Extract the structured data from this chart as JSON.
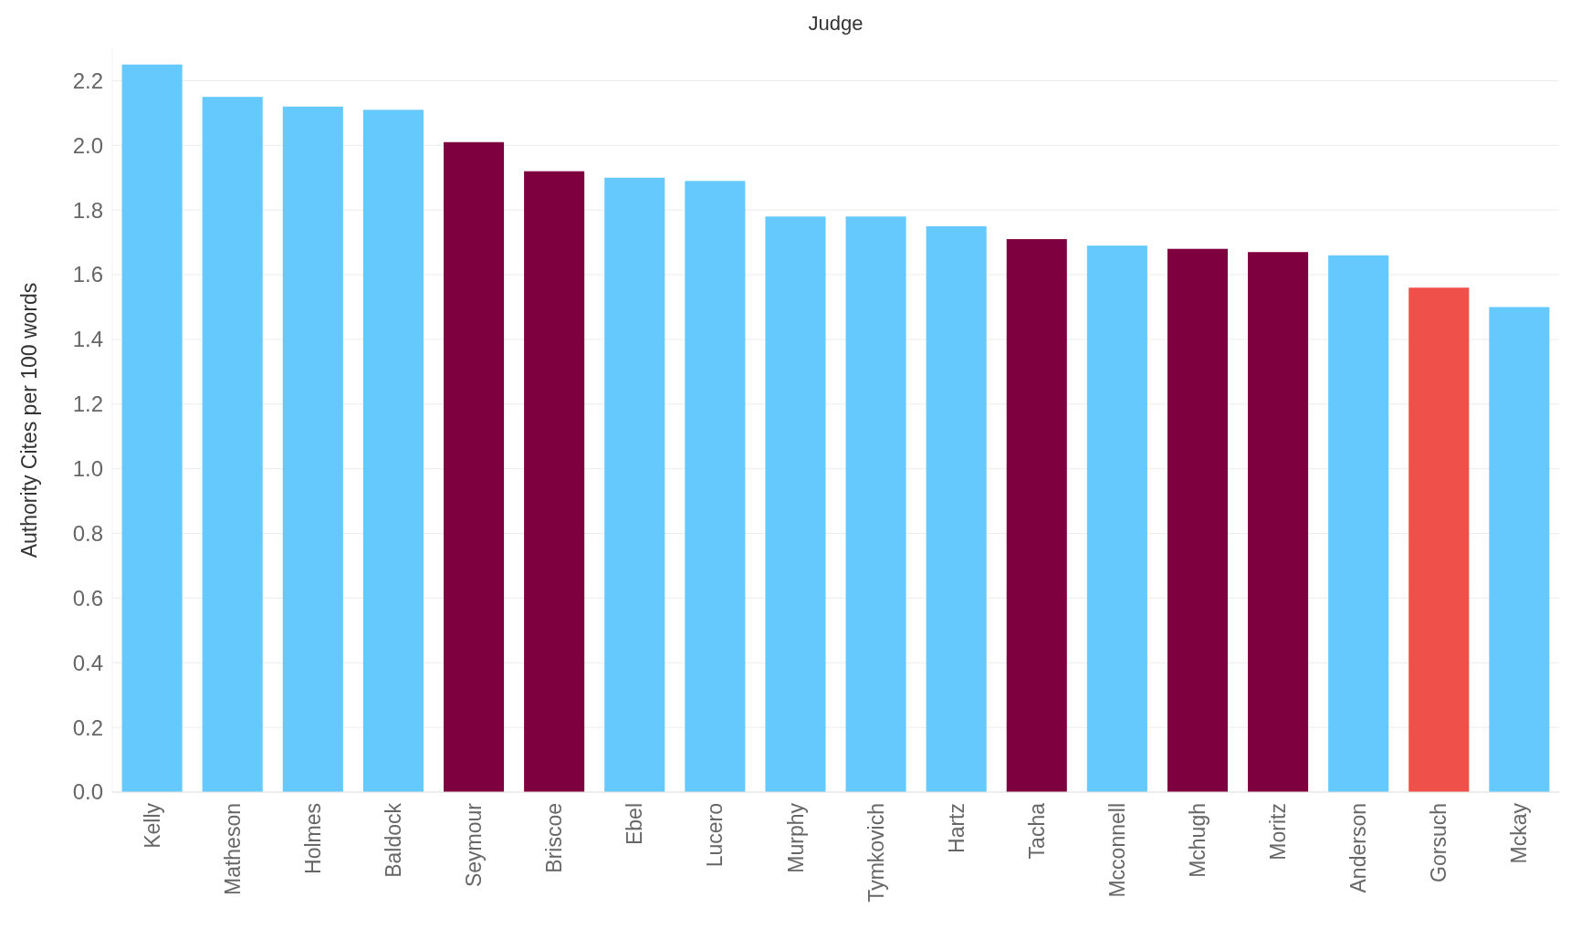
{
  "chart_data": {
    "type": "bar",
    "title": "Judge",
    "ylabel": "Authority Cites per 100 words",
    "categories": [
      "Kelly",
      "Matheson",
      "Holmes",
      "Baldock",
      "Seymour",
      "Briscoe",
      "Ebel",
      "Lucero",
      "Murphy",
      "Tymkovich",
      "Hartz",
      "Tacha",
      "Mcconnell",
      "Mchugh",
      "Moritz",
      "Anderson",
      "Gorsuch",
      "Mckay"
    ],
    "values": [
      2.25,
      2.15,
      2.12,
      2.11,
      2.01,
      1.92,
      1.9,
      1.89,
      1.78,
      1.78,
      1.75,
      1.71,
      1.69,
      1.68,
      1.67,
      1.66,
      1.56,
      1.5
    ],
    "colors": [
      "#66c9fd",
      "#66c9fd",
      "#66c9fd",
      "#66c9fd",
      "#7f003f",
      "#7f003f",
      "#66c9fd",
      "#66c9fd",
      "#66c9fd",
      "#66c9fd",
      "#66c9fd",
      "#7f003f",
      "#66c9fd",
      "#7f003f",
      "#7f003f",
      "#66c9fd",
      "#ef5049",
      "#66c9fd"
    ],
    "ylim": [
      0,
      2.3
    ],
    "yticks": [
      {
        "value": 0,
        "label": "0.0"
      },
      {
        "value": 0.2,
        "label": "0.2"
      },
      {
        "value": 0.4,
        "label": "0.4"
      },
      {
        "value": 0.6,
        "label": "0.6"
      },
      {
        "value": 0.8,
        "label": "0.8"
      },
      {
        "value": 1,
        "label": "1.0"
      },
      {
        "value": 1.2,
        "label": "1.2"
      },
      {
        "value": 1.4,
        "label": "1.4"
      },
      {
        "value": 1.6,
        "label": "1.6"
      },
      {
        "value": 1.8,
        "label": "1.8"
      },
      {
        "value": 2,
        "label": "2.0"
      },
      {
        "value": 2.2,
        "label": "2.2"
      }
    ],
    "grid": "y"
  }
}
